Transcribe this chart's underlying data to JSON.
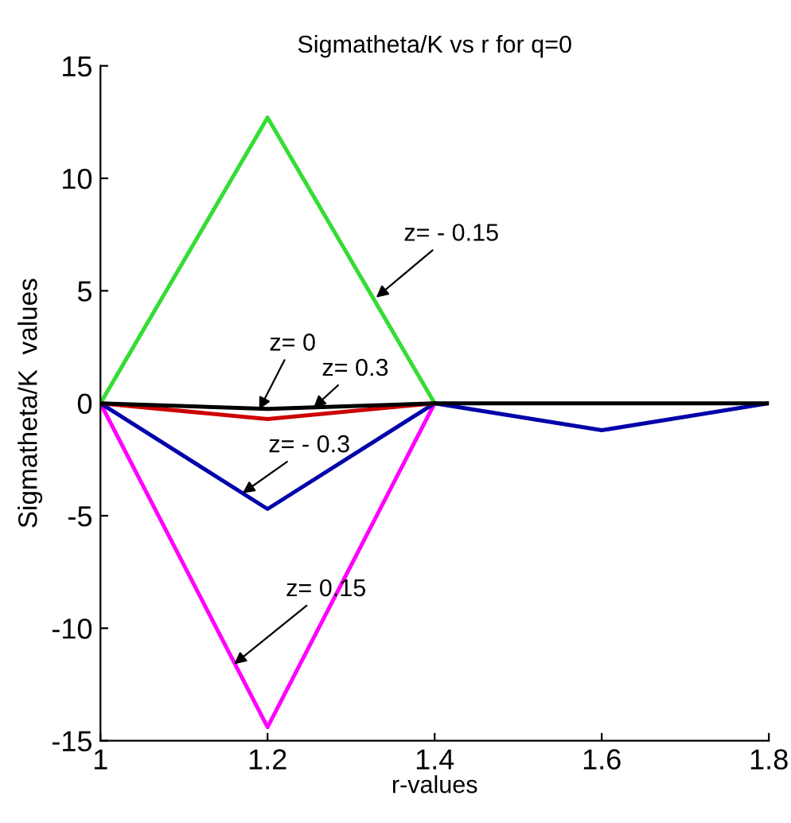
{
  "chart_data": {
    "type": "line",
    "title": "Sigmatheta/K vs r for q=0",
    "xlabel": "r-values",
    "ylabel": "Sigmatheta/K  values",
    "x": [
      1,
      1.2,
      1.4,
      1.6,
      1.8
    ],
    "series": [
      {
        "color": "#ff00ff",
        "x": [
          1,
          1.2,
          1.4
        ],
        "values": [
          0,
          -14.4,
          0
        ]
      },
      {
        "color": "#0000aa",
        "values": [
          0,
          -4.7,
          0,
          -1.2,
          0
        ]
      },
      {
        "color": "#33dd33",
        "x": [
          1,
          1.2,
          1.4
        ],
        "values": [
          0,
          12.7,
          0
        ]
      },
      {
        "color": "#cc0000",
        "x": [
          1,
          1.2,
          1.4
        ],
        "values": [
          0,
          -0.7,
          0
        ]
      },
      {
        "color": "#000000",
        "values": [
          0,
          -0.25,
          0,
          0,
          0
        ]
      }
    ],
    "annotations": [
      {
        "text": "z= - 0.15",
        "x": 1.33,
        "y": 4.7
      },
      {
        "text": "z= 0",
        "x": 1.19,
        "y": -0.28
      },
      {
        "text": "z= 0.3",
        "x": 1.255,
        "y": -0.2
      },
      {
        "text": "z= - 0.3",
        "x": 1.17,
        "y": -4
      },
      {
        "text": "z= 0.15",
        "x": 1.16,
        "y": -11.6
      }
    ],
    "xlim": [
      1,
      1.8
    ],
    "ylim": [
      -15,
      15
    ],
    "xticks": [
      1,
      1.2,
      1.4,
      1.6,
      1.8
    ],
    "yticks": [
      -15,
      -10,
      -5,
      0,
      5,
      10,
      15
    ],
    "grid": false,
    "marker": "none",
    "line_style": "solid"
  }
}
